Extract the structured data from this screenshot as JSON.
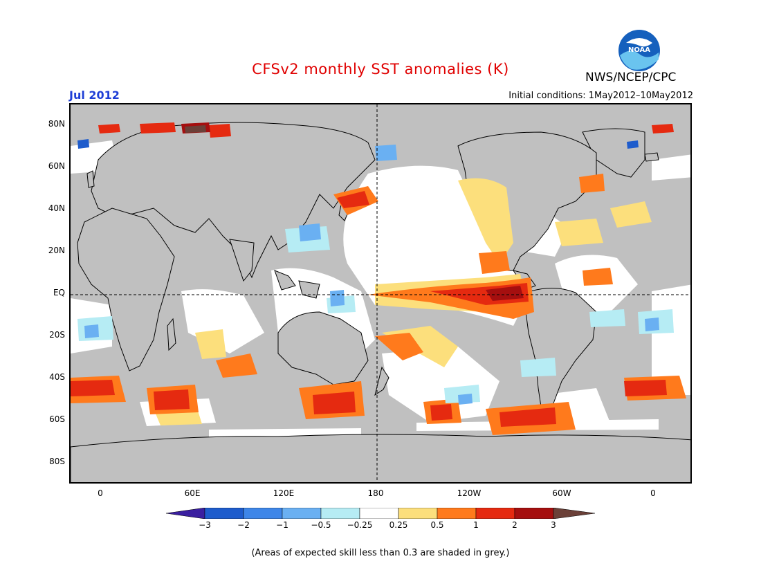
{
  "title": "CFSv2 monthly SST anomalies (K)",
  "organization": "NWS/NCEP/CPC",
  "logo_text": "NOAA",
  "valid_month": "Jul 2012",
  "initial_conditions": "Initial conditions: 1May2012–10May2012",
  "latitude_labels": [
    "80N",
    "60N",
    "40N",
    "20N",
    "EQ",
    "20S",
    "40S",
    "60S",
    "80S"
  ],
  "longitude_labels": [
    "0",
    "60E",
    "120E",
    "180",
    "120W",
    "60W",
    "0"
  ],
  "colorbar": {
    "labels": [
      "−3",
      "−2",
      "−1",
      "−0.5",
      "−0.25",
      "0.25",
      "0.5",
      "1",
      "2",
      "3"
    ],
    "colors": [
      "#3a1fa0",
      "#1e5ccc",
      "#3e86e8",
      "#6ab0f2",
      "#b6ecf4",
      "#ffffff",
      "#fcdf7c",
      "#ff7a1c",
      "#e52a10",
      "#a50f0f",
      "#6b4038"
    ]
  },
  "colors": {
    "land": "#c0c0c0",
    "low_skill_grey": "#c0c0c0",
    "ocean_neutral": "#ffffff"
  },
  "footnote": "(Areas of expected skill less than 0.3 are shaded in grey.)"
}
